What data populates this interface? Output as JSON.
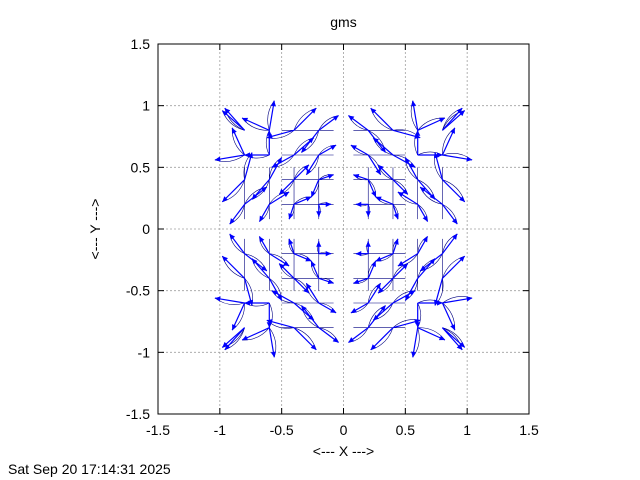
{
  "chart_data": {
    "type": "vector-field",
    "title": "gms",
    "xlabel": "<--- X --->",
    "ylabel": "<--- Y --->",
    "xlim": [
      -1.5,
      1.5
    ],
    "ylim": [
      -1.5,
      1.5
    ],
    "xticks": [
      "-1.5",
      "-1",
      "-0.5",
      "0",
      "0.5",
      "1",
      "1.5"
    ],
    "yticks": [
      "-1.5",
      "-1",
      "-0.5",
      "0",
      "0.5",
      "1",
      "1.5"
    ],
    "grid": true,
    "symmetry": "four-fold mirror about x = 0 and y = 0",
    "series": [
      {
        "color": "#0000ff",
        "line_color": "#000080",
        "vectors_upper_right_quadrant": [
          {
            "x": 0.2,
            "y": 0.2,
            "dx": -0.1,
            "dy": 0.0
          },
          {
            "x": 0.2,
            "y": 0.2,
            "dx": 0.0,
            "dy": -0.1
          },
          {
            "x": 0.2,
            "y": 0.4,
            "dx": -0.12,
            "dy": 0.04
          },
          {
            "x": 0.2,
            "y": 0.4,
            "dx": 0.06,
            "dy": -0.14
          },
          {
            "x": 0.2,
            "y": 0.6,
            "dx": -0.14,
            "dy": 0.08
          },
          {
            "x": 0.2,
            "y": 0.6,
            "dx": 0.1,
            "dy": -0.16
          },
          {
            "x": 0.2,
            "y": 0.8,
            "dx": -0.16,
            "dy": 0.12
          },
          {
            "x": 0.2,
            "y": 0.8,
            "dx": 0.14,
            "dy": -0.18
          },
          {
            "x": 0.4,
            "y": 0.2,
            "dx": 0.04,
            "dy": -0.12
          },
          {
            "x": 0.4,
            "y": 0.2,
            "dx": -0.14,
            "dy": 0.06
          },
          {
            "x": 0.4,
            "y": 0.4,
            "dx": -0.12,
            "dy": 0.12
          },
          {
            "x": 0.4,
            "y": 0.4,
            "dx": 0.12,
            "dy": -0.12
          },
          {
            "x": 0.4,
            "y": 0.6,
            "dx": -0.16,
            "dy": 0.14
          },
          {
            "x": 0.4,
            "y": 0.6,
            "dx": 0.18,
            "dy": -0.1
          },
          {
            "x": 0.4,
            "y": 0.8,
            "dx": -0.18,
            "dy": 0.18
          },
          {
            "x": 0.4,
            "y": 0.8,
            "dx": 0.22,
            "dy": -0.06
          },
          {
            "x": 0.6,
            "y": 0.2,
            "dx": 0.08,
            "dy": -0.14
          },
          {
            "x": 0.6,
            "y": 0.2,
            "dx": -0.16,
            "dy": 0.1
          },
          {
            "x": 0.6,
            "y": 0.4,
            "dx": 0.14,
            "dy": -0.16
          },
          {
            "x": 0.6,
            "y": 0.4,
            "dx": -0.1,
            "dy": 0.18
          },
          {
            "x": 0.6,
            "y": 0.6,
            "dx": 0.2,
            "dy": 0.0
          },
          {
            "x": 0.6,
            "y": 0.6,
            "dx": 0.0,
            "dy": 0.2
          },
          {
            "x": 0.6,
            "y": 0.8,
            "dx": 0.22,
            "dy": 0.1
          },
          {
            "x": 0.6,
            "y": 0.8,
            "dx": -0.04,
            "dy": 0.24
          },
          {
            "x": 0.8,
            "y": 0.2,
            "dx": 0.12,
            "dy": -0.16
          },
          {
            "x": 0.8,
            "y": 0.2,
            "dx": -0.18,
            "dy": 0.14
          },
          {
            "x": 0.8,
            "y": 0.4,
            "dx": 0.18,
            "dy": -0.18
          },
          {
            "x": 0.8,
            "y": 0.4,
            "dx": -0.06,
            "dy": 0.22
          },
          {
            "x": 0.8,
            "y": 0.6,
            "dx": 0.24,
            "dy": -0.04
          },
          {
            "x": 0.8,
            "y": 0.6,
            "dx": 0.1,
            "dy": 0.22
          },
          {
            "x": 0.8,
            "y": 0.8,
            "dx": 0.16,
            "dy": 0.18
          },
          {
            "x": 0.8,
            "y": 0.8,
            "dx": 0.18,
            "dy": 0.16
          }
        ]
      }
    ]
  },
  "timestamp": "Sat Sep 20 17:14:31 2025"
}
